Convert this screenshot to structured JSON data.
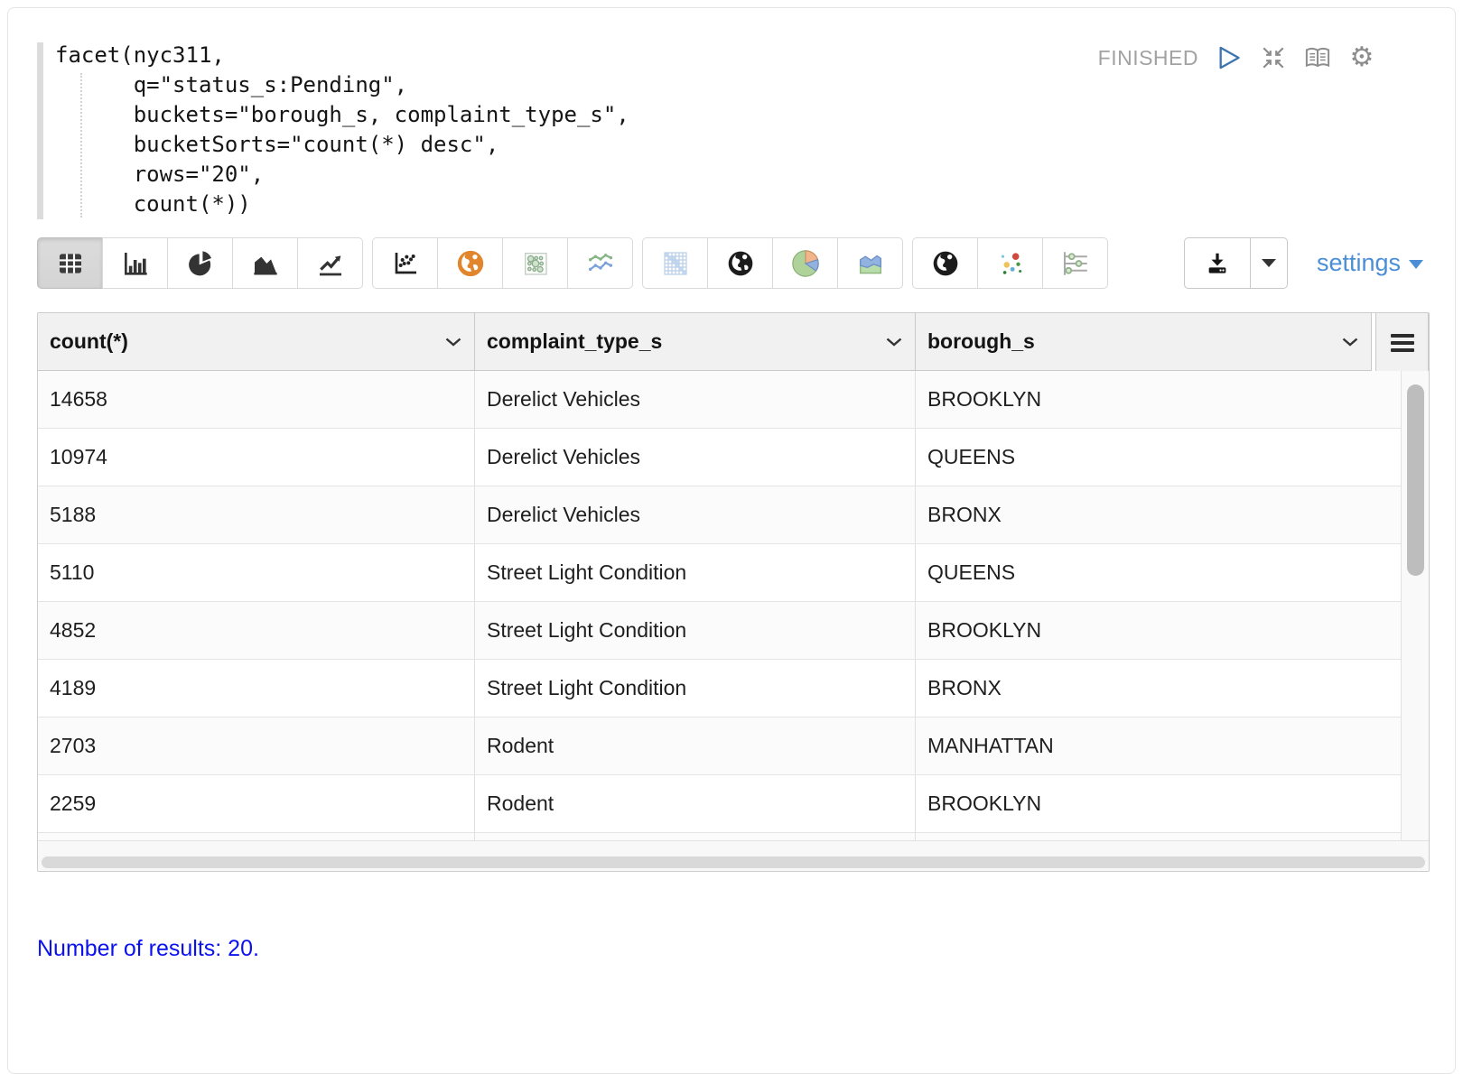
{
  "status": {
    "label": "FINISHED"
  },
  "editor": {
    "code": "facet(nyc311,\n      q=\"status_s:Pending\",\n      buckets=\"borough_s, complaint_type_s\",\n      bucketSorts=\"count(*) desc\",\n      rows=\"20\",\n      count(*))"
  },
  "controls": {
    "icons": [
      "play-icon",
      "compress-icon",
      "book-icon",
      "gear-icon"
    ]
  },
  "toolbar": {
    "chart_types": [
      "table",
      "bar-chart",
      "pie-chart",
      "area-chart",
      "line-chart",
      "scatter-chart",
      "map-globe-orange",
      "bubble-grid",
      "multi-line-chart",
      "matrix-grid",
      "globe-dark",
      "pie-chart-color",
      "area-chart-color",
      "globe-dark-2",
      "scatter-color",
      "parallel-coordinates"
    ],
    "selected": "table",
    "download_icon": "download-icon",
    "settings_label": "settings"
  },
  "table": {
    "columns": [
      "count(*)",
      "complaint_type_s",
      "borough_s"
    ],
    "rows": [
      [
        "14658",
        "Derelict Vehicles",
        "BROOKLYN"
      ],
      [
        "10974",
        "Derelict Vehicles",
        "QUEENS"
      ],
      [
        "5188",
        "Derelict Vehicles",
        "BRONX"
      ],
      [
        "5110",
        "Street Light Condition",
        "QUEENS"
      ],
      [
        "4852",
        "Street Light Condition",
        "BROOKLYN"
      ],
      [
        "4189",
        "Street Light Condition",
        "BRONX"
      ],
      [
        "2703",
        "Rodent",
        "MANHATTAN"
      ],
      [
        "2259",
        "Rodent",
        "BROOKLYN"
      ]
    ]
  },
  "footer": {
    "results_note": "Number of results: 20."
  },
  "colors": {
    "accent_blue": "#4a8fd6",
    "link_blue": "#0a12ee",
    "status_gray": "#a2a2a2",
    "selected_button_bg": "#d6d6d6",
    "header_bg": "#f1f1f1"
  }
}
